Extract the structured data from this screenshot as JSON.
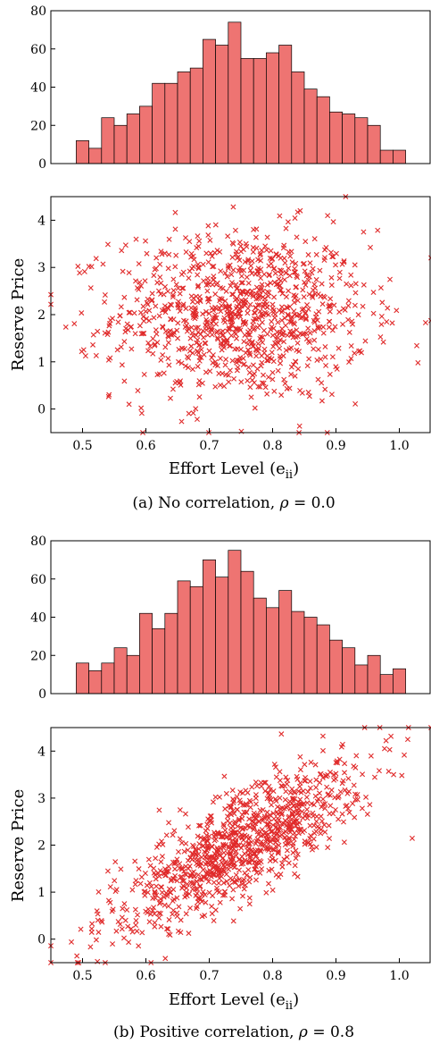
{
  "chart_data": [
    {
      "type": "bar",
      "panel": "a",
      "bins": [
        0.5,
        0.52,
        0.54,
        0.56,
        0.58,
        0.6,
        0.62,
        0.64,
        0.66,
        0.68,
        0.7,
        0.72,
        0.74,
        0.76,
        0.78,
        0.8,
        0.82,
        0.84,
        0.86,
        0.88,
        0.9,
        0.92,
        0.94,
        0.96,
        0.98,
        1.0
      ],
      "values": [
        12,
        8,
        24,
        20,
        26,
        30,
        42,
        42,
        48,
        50,
        65,
        62,
        74,
        55,
        55,
        58,
        62,
        48,
        39,
        35,
        27,
        26,
        24,
        20,
        7,
        7
      ],
      "ylim": [
        0,
        80
      ],
      "yticks": [
        "0",
        "20",
        "40",
        "60",
        "80"
      ]
    },
    {
      "type": "scatter",
      "panel": "a",
      "n_points": 1000,
      "correlation": 0.0,
      "x_mean": 0.75,
      "x_sd": 0.1,
      "y_mean": 2.0,
      "y_sd": 0.9,
      "xlim": [
        0.45,
        1.05
      ],
      "ylim": [
        -0.5,
        4.5
      ],
      "xticks": [
        "0.5",
        "0.6",
        "0.7",
        "0.8",
        "0.9",
        "1.0"
      ],
      "yticks": [
        "0",
        "1",
        "2",
        "3",
        "4"
      ],
      "marker": "x",
      "xlabel_main": "Effort Level (e",
      "xlabel_sub": "ii",
      "xlabel_close": ")",
      "ylabel": "Reserve Price"
    },
    {
      "type": "bar",
      "panel": "b",
      "bins": [
        0.5,
        0.52,
        0.54,
        0.56,
        0.58,
        0.6,
        0.62,
        0.64,
        0.66,
        0.68,
        0.7,
        0.72,
        0.74,
        0.76,
        0.78,
        0.8,
        0.82,
        0.84,
        0.86,
        0.88,
        0.9,
        0.92,
        0.94,
        0.96,
        0.98,
        1.0
      ],
      "values": [
        16,
        12,
        16,
        24,
        20,
        42,
        34,
        42,
        59,
        56,
        70,
        61,
        75,
        64,
        50,
        45,
        54,
        43,
        40,
        36,
        28,
        24,
        15,
        20,
        10,
        13
      ],
      "ylim": [
        0,
        80
      ],
      "yticks": [
        "0",
        "20",
        "40",
        "60",
        "80"
      ]
    },
    {
      "type": "scatter",
      "panel": "b",
      "n_points": 1000,
      "correlation": 0.8,
      "x_mean": 0.75,
      "x_sd": 0.1,
      "y_mean": 2.0,
      "y_sd": 0.9,
      "xlim": [
        0.45,
        1.05
      ],
      "ylim": [
        -0.5,
        4.5
      ],
      "xticks": [
        "0.5",
        "0.6",
        "0.7",
        "0.8",
        "0.9",
        "1.0"
      ],
      "yticks": [
        "0",
        "1",
        "2",
        "3",
        "4"
      ],
      "marker": "x",
      "xlabel_main": "Effort Level (e",
      "xlabel_sub": "ii",
      "xlabel_close": ")",
      "ylabel": "Reserve Price"
    }
  ],
  "captions": {
    "a": {
      "prefix": "(a) No correlation, ",
      "symbol": "ρ",
      "suffix": " = 0.0"
    },
    "b": {
      "prefix": "(b) Positive correlation, ",
      "symbol": "ρ",
      "suffix": " = 0.8"
    }
  },
  "colors": {
    "bar_fill": "#ee7472",
    "marker": "#e02a2a",
    "axis": "#000000"
  }
}
